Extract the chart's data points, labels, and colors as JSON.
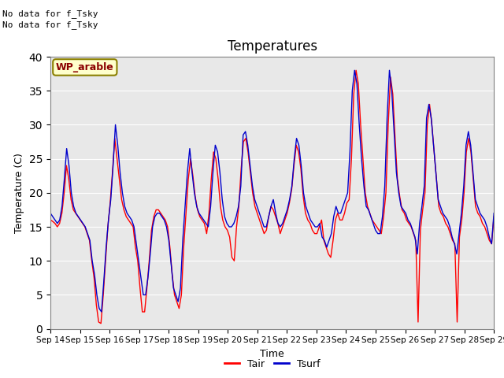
{
  "title": "Temperatures",
  "xlabel": "Time",
  "ylabel": "Temperature (C)",
  "text_above": [
    "No data for f_Tsky",
    "No data for f_Tsky"
  ],
  "wp_label": "WP_arable",
  "ylim": [
    0,
    40
  ],
  "background_color": "#e8e8e8",
  "tair_color": "#ff0000",
  "tsurf_color": "#0000cc",
  "legend_tair": "Tair",
  "legend_tsurf": "Tsurf",
  "n_days": 15,
  "xtick_labels": [
    "Sep 14",
    "Sep 15",
    "Sep 16",
    "Sep 17",
    "Sep 18",
    "Sep 19",
    "Sep 20",
    "Sep 21",
    "Sep 22",
    "Sep 23",
    "Sep 24",
    "Sep 25",
    "Sep 26",
    "Sep 27",
    "Sep 28",
    "Sep 29"
  ],
  "tair_data": [
    16.0,
    15.8,
    15.5,
    15.0,
    15.5,
    17.0,
    20.0,
    24.0,
    22.0,
    19.0,
    17.5,
    17.0,
    16.5,
    16.0,
    15.5,
    15.0,
    14.0,
    13.0,
    10.0,
    7.5,
    3.5,
    1.0,
    0.8,
    5.0,
    10.0,
    15.0,
    18.5,
    23.0,
    28.0,
    25.0,
    22.0,
    19.0,
    17.5,
    16.5,
    16.0,
    15.5,
    15.0,
    12.0,
    10.0,
    6.0,
    2.5,
    2.5,
    6.0,
    10.0,
    14.5,
    16.5,
    17.5,
    17.5,
    17.0,
    16.5,
    16.0,
    15.0,
    12.0,
    8.0,
    5.0,
    4.0,
    3.0,
    5.0,
    12.0,
    17.0,
    22.0,
    25.0,
    22.5,
    19.5,
    17.5,
    16.5,
    16.0,
    15.5,
    14.0,
    17.0,
    22.0,
    26.0,
    25.0,
    22.0,
    18.0,
    16.0,
    15.0,
    14.5,
    13.5,
    10.5,
    10.0,
    15.0,
    18.0,
    23.5,
    27.5,
    28.0,
    26.0,
    23.0,
    20.0,
    18.0,
    17.0,
    16.0,
    15.0,
    14.0,
    14.5,
    16.5,
    18.0,
    17.5,
    16.5,
    15.5,
    14.0,
    15.0,
    16.0,
    17.0,
    18.5,
    20.5,
    24.0,
    27.0,
    26.0,
    23.5,
    19.5,
    17.0,
    16.0,
    15.5,
    14.5,
    14.0,
    14.0,
    15.0,
    16.0,
    13.0,
    12.0,
    11.0,
    10.5,
    13.0,
    16.0,
    17.0,
    16.0,
    16.0,
    17.0,
    18.5,
    19.0,
    25.0,
    34.5,
    38.0,
    36.0,
    30.0,
    25.0,
    20.0,
    18.0,
    17.0,
    16.0,
    15.5,
    15.0,
    14.5,
    14.0,
    16.5,
    20.0,
    30.0,
    37.0,
    34.5,
    28.0,
    22.0,
    19.5,
    17.5,
    17.0,
    16.0,
    15.5,
    15.0,
    14.0,
    13.0,
    1.0,
    14.5,
    17.5,
    20.0,
    30.0,
    33.0,
    30.0,
    26.0,
    22.0,
    18.0,
    17.0,
    16.5,
    15.5,
    15.0,
    14.0,
    13.0,
    12.5,
    1.0,
    13.5,
    16.0,
    20.0,
    26.0,
    28.0,
    26.0,
    22.0,
    18.0,
    17.0,
    16.5,
    15.5,
    15.0,
    14.0,
    13.0,
    12.5,
    16.5
  ],
  "tsurf_data": [
    17.0,
    16.5,
    16.0,
    15.5,
    16.0,
    18.0,
    22.0,
    26.5,
    24.0,
    20.0,
    18.0,
    17.0,
    16.5,
    16.0,
    15.5,
    15.0,
    14.0,
    13.0,
    10.0,
    8.0,
    5.0,
    3.0,
    2.5,
    7.0,
    12.0,
    16.0,
    19.0,
    24.0,
    30.0,
    27.0,
    23.0,
    20.0,
    18.0,
    17.0,
    16.5,
    16.0,
    15.0,
    12.5,
    10.0,
    7.5,
    5.0,
    5.0,
    7.5,
    11.0,
    15.0,
    16.5,
    17.0,
    17.0,
    16.5,
    16.0,
    15.0,
    13.0,
    9.5,
    6.0,
    5.0,
    4.0,
    6.0,
    13.0,
    18.0,
    23.0,
    26.5,
    23.0,
    20.0,
    18.0,
    17.0,
    16.5,
    16.0,
    15.5,
    15.0,
    18.0,
    23.0,
    27.0,
    26.0,
    23.0,
    19.0,
    16.5,
    15.5,
    15.0,
    15.0,
    15.5,
    16.5,
    18.0,
    21.0,
    28.5,
    29.0,
    27.0,
    24.0,
    21.0,
    19.0,
    18.0,
    17.0,
    16.0,
    15.0,
    15.0,
    16.5,
    18.0,
    19.0,
    17.0,
    15.5,
    15.0,
    15.5,
    16.5,
    17.5,
    19.0,
    21.0,
    25.0,
    28.0,
    27.0,
    24.0,
    20.0,
    18.0,
    17.0,
    16.0,
    15.5,
    15.0,
    15.0,
    15.5,
    13.5,
    13.0,
    12.0,
    13.0,
    14.0,
    16.5,
    18.0,
    17.0,
    17.0,
    18.0,
    19.0,
    20.0,
    26.0,
    35.0,
    38.0,
    36.0,
    30.0,
    25.0,
    21.0,
    18.0,
    17.5,
    16.5,
    15.5,
    14.5,
    14.0,
    14.0,
    16.5,
    21.0,
    31.0,
    38.0,
    35.0,
    29.0,
    23.0,
    20.0,
    18.0,
    17.5,
    17.0,
    16.0,
    15.5,
    14.5,
    13.5,
    11.0,
    15.5,
    18.0,
    21.0,
    31.0,
    33.0,
    31.0,
    27.0,
    23.0,
    19.0,
    18.0,
    17.0,
    16.5,
    16.0,
    15.0,
    13.5,
    12.5,
    11.0,
    14.0,
    17.0,
    21.0,
    27.0,
    29.0,
    27.0,
    23.0,
    19.0,
    18.0,
    17.0,
    16.5,
    16.0,
    15.0,
    13.5,
    12.5,
    17.0
  ]
}
